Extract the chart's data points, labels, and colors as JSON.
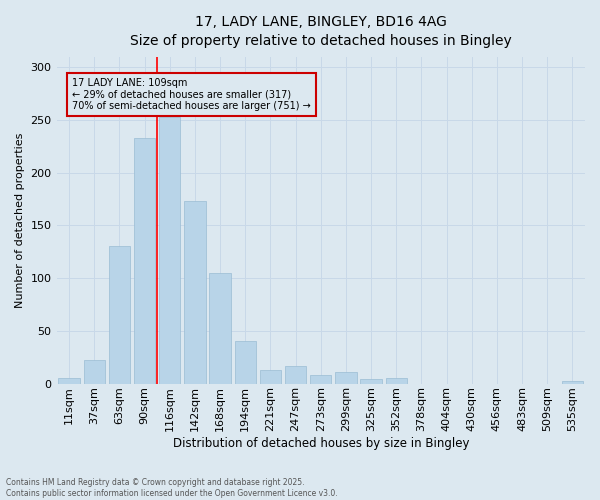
{
  "title_line1": "17, LADY LANE, BINGLEY, BD16 4AG",
  "title_line2": "Size of property relative to detached houses in Bingley",
  "xlabel": "Distribution of detached houses by size in Bingley",
  "ylabel": "Number of detached properties",
  "categories": [
    "11sqm",
    "37sqm",
    "63sqm",
    "90sqm",
    "116sqm",
    "142sqm",
    "168sqm",
    "194sqm",
    "221sqm",
    "247sqm",
    "273sqm",
    "299sqm",
    "325sqm",
    "352sqm",
    "378sqm",
    "404sqm",
    "430sqm",
    "456sqm",
    "483sqm",
    "509sqm",
    "535sqm"
  ],
  "values": [
    5,
    22,
    130,
    233,
    253,
    173,
    105,
    40,
    13,
    17,
    8,
    11,
    4,
    5,
    0,
    0,
    0,
    0,
    0,
    0,
    2
  ],
  "bar_color": "#b8d4e8",
  "bar_edge_color": "#9abcd4",
  "grid_color": "#c8d8e8",
  "background_color": "#dce8f0",
  "annotation_box_color": "#cc0000",
  "property_line_index": 4,
  "annotation_title": "17 LADY LANE: 109sqm",
  "annotation_line1": "← 29% of detached houses are smaller (317)",
  "annotation_line2": "70% of semi-detached houses are larger (751) →",
  "ylim": [
    0,
    310
  ],
  "yticks": [
    0,
    50,
    100,
    150,
    200,
    250,
    300
  ],
  "footer_line1": "Contains HM Land Registry data © Crown copyright and database right 2025.",
  "footer_line2": "Contains public sector information licensed under the Open Government Licence v3.0."
}
